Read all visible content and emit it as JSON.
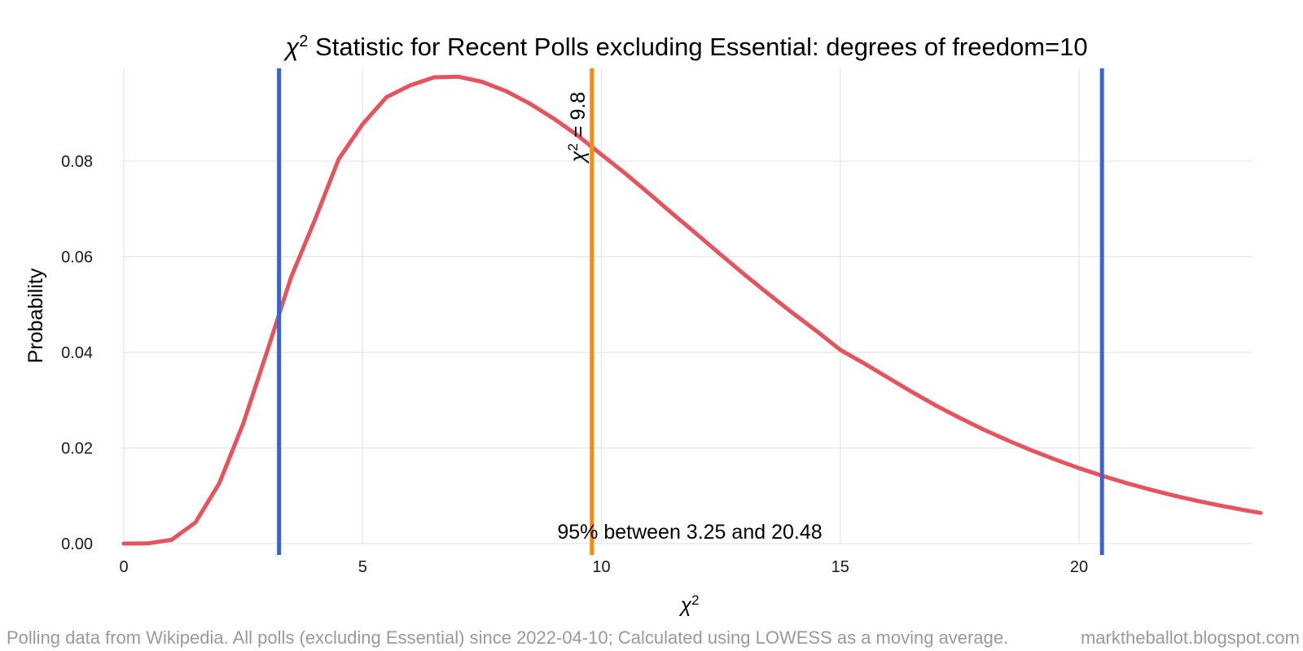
{
  "chart_data": {
    "type": "line",
    "title_symbol": "χ",
    "title_sup": "2",
    "title_text": " Statistic for Recent Polls excluding Essential: degrees of freedom=10",
    "xlabel_symbol": "χ",
    "xlabel_sup": "2",
    "ylabel": "Probability",
    "xlim": [
      0,
      23.8
    ],
    "ylim": [
      0,
      0.098
    ],
    "x_ticks": [
      0,
      5,
      10,
      15,
      20
    ],
    "x_tick_labels": [
      "0",
      "5",
      "10",
      "15",
      "20"
    ],
    "y_ticks": [
      0,
      0.02,
      0.04,
      0.06,
      0.08
    ],
    "y_tick_labels": [
      "0.00",
      "0.02",
      "0.04",
      "0.06",
      "0.08"
    ],
    "grid": true,
    "series": [
      {
        "color": "#e8525d",
        "x": [
          0.0,
          0.5,
          1.0,
          1.5,
          2.0,
          2.5,
          3.0,
          3.5,
          4.0,
          4.5,
          5.0,
          5.5,
          6.0,
          6.5,
          7.0,
          7.5,
          8.0,
          8.5,
          9.0,
          9.5,
          10.0,
          10.5,
          11.0,
          11.5,
          12.0,
          12.5,
          13.0,
          13.5,
          14.0,
          14.5,
          15.0,
          15.5,
          16.0,
          16.5,
          17.0,
          17.5,
          18.0,
          18.5,
          19.0,
          19.5,
          20.0,
          20.5,
          21.0,
          21.5,
          22.0,
          22.5,
          23.0,
          23.5,
          23.8
        ],
        "y": [
          0.0,
          3e-05,
          0.00079,
          0.00443,
          0.01263,
          0.02507,
          0.04016,
          0.05566,
          0.06767,
          0.08044,
          0.08775,
          0.09338,
          0.09587,
          0.09754,
          0.09766,
          0.09659,
          0.09465,
          0.09204,
          0.08891,
          0.08538,
          0.08138,
          0.07741,
          0.07321,
          0.06891,
          0.0647,
          0.06042,
          0.05622,
          0.05218,
          0.04826,
          0.0445,
          0.04052,
          0.03768,
          0.0347,
          0.03172,
          0.0289,
          0.02629,
          0.02384,
          0.02162,
          0.01952,
          0.01758,
          0.01578,
          0.01412,
          0.01263,
          0.01126,
          0.01001,
          0.00888,
          0.00786,
          0.00692,
          0.00642
        ]
      }
    ],
    "vlines": [
      {
        "x": 3.25,
        "color": "#3a62d8"
      },
      {
        "x": 20.48,
        "color": "#3a62d8"
      },
      {
        "x": 9.8,
        "color": "#f28b17"
      }
    ],
    "annotations": {
      "observed_symbol": "χ",
      "observed_sup": "2",
      "observed_text": " = 9.8",
      "range_text": "95% between 3.25 and 20.48"
    },
    "caption_left": "Polling data from Wikipedia. All polls (excluding Essential) since 2022-04-10; Calculated using LOWESS as a moving average.",
    "caption_right": "marktheballot.blogspot.com"
  }
}
